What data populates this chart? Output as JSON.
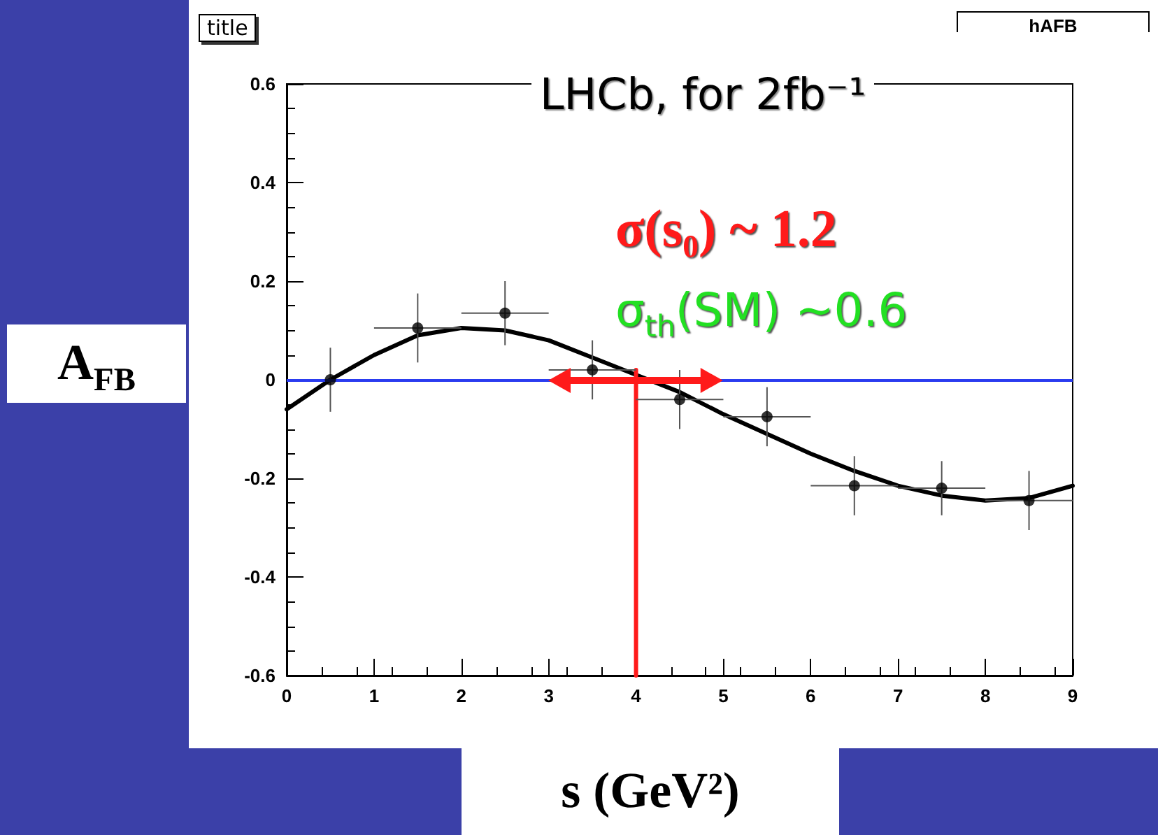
{
  "chart_data": {
    "type": "scatter",
    "title": "title",
    "subtitle": "LHCb, for 2fb⁻¹",
    "xlabel": "s (GeV²)",
    "ylabel": "A$_{FB}$",
    "annotations": [
      "σ(s₀) ~ 1.2",
      "σ$_{th}$(SM) ~0.6",
      "hAFB"
    ],
    "xlim": [
      0,
      9
    ],
    "xticks": [
      0,
      1,
      2,
      3,
      4,
      5,
      6,
      7,
      8,
      9
    ],
    "ylim": [
      -0.6,
      0.6
    ],
    "yticks": [
      -0.6,
      -0.4,
      -0.2,
      0,
      0.2,
      0.4,
      0.6
    ],
    "grid": false,
    "marker": "circle",
    "ref_lines": [
      {
        "axis": "y",
        "value": 0,
        "color": "#2a3cf0"
      }
    ],
    "series": [
      {
        "color": "#000000",
        "x": [
          0.5,
          1.5,
          2.5,
          3.5,
          4.5,
          5.5,
          6.5,
          7.5,
          8.5
        ],
        "values": [
          0.0,
          0.105,
          0.135,
          0.02,
          -0.04,
          -0.075,
          -0.215,
          -0.22,
          -0.245
        ],
        "errors": [
          0.065,
          0.07,
          0.065,
          0.06,
          0.06,
          0.06,
          0.06,
          0.055,
          0.06
        ],
        "xerrors": [
          0.5,
          0.5,
          0.5,
          0.5,
          0.5,
          0.5,
          0.5,
          0.5,
          0.5
        ]
      },
      {
        "type": "line",
        "color": "#000000",
        "marker": "none",
        "x": [
          0,
          0.5,
          1,
          1.5,
          2,
          2.5,
          3,
          3.5,
          4,
          4.5,
          5,
          5.5,
          6,
          6.5,
          7,
          7.5,
          8,
          8.5,
          9
        ],
        "values": [
          -0.06,
          0.0,
          0.05,
          0.09,
          0.105,
          0.1,
          0.08,
          0.045,
          0.01,
          -0.025,
          -0.07,
          -0.11,
          -0.15,
          -0.185,
          -0.215,
          -0.235,
          -0.245,
          -0.24,
          -0.215
        ]
      },
      {
        "type": "line",
        "color": "#ff1a1a",
        "marker": "none",
        "x": [
          4,
          4
        ],
        "values": [
          -0.6,
          0.02
        ]
      }
    ]
  }
}
